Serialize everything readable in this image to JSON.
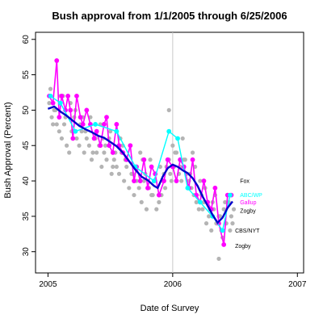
{
  "chart_data": {
    "type": "scatter",
    "title": "Bush approval from 1/1/2005 through 6/25/2006",
    "xlabel": "Date of Survey",
    "ylabel": "Bush Approval (Percent)",
    "xlim": [
      2004.9,
      2007.05
    ],
    "ylim": [
      27,
      61
    ],
    "x_ticks": [
      2005,
      2006,
      2007
    ],
    "x_tick_labels": [
      "2005",
      "2006",
      "2007"
    ],
    "y_ticks": [
      30,
      35,
      40,
      45,
      50,
      55,
      60
    ],
    "y_tick_labels": [
      "30",
      "35",
      "40",
      "45",
      "50",
      "55",
      "60"
    ],
    "reference_line_x": 2006,
    "grid": false,
    "colors": {
      "all_polls": "#b4b4b4",
      "trend": "#0000cc",
      "gallup": "#ff00ff",
      "abcwp": "#00ffff",
      "label_text": "#000000"
    },
    "series": [
      {
        "name": "",
        "style": "gray-points",
        "x": [
          2005.01,
          2005.03,
          2005.05,
          2005.07,
          2005.09,
          2005.11,
          2005.13,
          2005.15,
          2005.17,
          2005.19,
          2005.21,
          2005.23,
          2005.25,
          2005.27,
          2005.29,
          2005.31,
          2005.33,
          2005.35,
          2005.37,
          2005.39,
          2005.41,
          2005.43,
          2005.45,
          2005.47,
          2005.49,
          2005.51,
          2005.53,
          2005.55,
          2005.57,
          2005.59,
          2005.61,
          2005.63,
          2005.65,
          2005.67,
          2005.69,
          2005.71,
          2005.73,
          2005.75,
          2005.77,
          2005.79,
          2005.81,
          2005.83,
          2005.85,
          2005.87,
          2005.89,
          2005.91,
          2005.93,
          2005.95,
          2005.97,
          2005.99,
          2006.01,
          2006.03,
          2006.05,
          2006.07,
          2006.09,
          2006.11,
          2006.13,
          2006.15,
          2006.17,
          2006.19,
          2006.21,
          2006.23,
          2006.25,
          2006.27,
          2006.29,
          2006.31,
          2006.33,
          2006.35,
          2006.37,
          2006.39,
          2006.41,
          2006.43,
          2006.45,
          2006.47,
          2006.49,
          2005.02,
          2005.06,
          2005.1,
          2005.14,
          2005.18,
          2005.22,
          2005.26,
          2005.3,
          2005.34,
          2005.38,
          2005.42,
          2005.46,
          2005.5,
          2005.54,
          2005.58,
          2005.62,
          2005.66,
          2005.7,
          2005.74,
          2005.78,
          2005.82,
          2005.86,
          2005.9,
          2005.94,
          2005.98,
          2006.02,
          2006.06,
          2006.1,
          2006.14,
          2006.18,
          2006.22,
          2006.26,
          2006.3,
          2006.34,
          2006.38,
          2006.42,
          2006.46,
          2005.04,
          2005.12,
          2005.2,
          2005.28,
          2005.36,
          2005.44,
          2005.52,
          2005.6,
          2005.68,
          2005.76,
          2005.84,
          2005.92,
          2006.0,
          2006.08,
          2006.16,
          2006.24,
          2006.32,
          2006.4,
          2006.48,
          2005.97,
          2006.37,
          2006.41
        ],
        "y": [
          51,
          49,
          50,
          48,
          47,
          46,
          48,
          45,
          44,
          47,
          49,
          46,
          45,
          47,
          44,
          46,
          45,
          43,
          46,
          44,
          45,
          42,
          44,
          43,
          46,
          41,
          43,
          42,
          41,
          44,
          40,
          42,
          39,
          41,
          38,
          40,
          39,
          37,
          40,
          36,
          39,
          38,
          40,
          36,
          37,
          38,
          41,
          42,
          43,
          40,
          42,
          44,
          41,
          40,
          43,
          41,
          40,
          39,
          38,
          37,
          36,
          38,
          37,
          34,
          35,
          33,
          36,
          34,
          35,
          33,
          36,
          34,
          37,
          35,
          36,
          53,
          50,
          52,
          49,
          51,
          50,
          48,
          47,
          49,
          46,
          48,
          45,
          47,
          44,
          46,
          43,
          45,
          42,
          44,
          41,
          43,
          40,
          42,
          39,
          41,
          44,
          42,
          43,
          41,
          42,
          40,
          39,
          36,
          38,
          35,
          37,
          33,
          48,
          52,
          47,
          49,
          44,
          46,
          42,
          45,
          41,
          43,
          38,
          40,
          45,
          46,
          44,
          36,
          37,
          32,
          34,
          50,
          29,
          31
        ]
      },
      {
        "name": "",
        "style": "trend",
        "x": [
          2005.0,
          2005.05,
          2005.1,
          2005.15,
          2005.2,
          2005.25,
          2005.3,
          2005.35,
          2005.4,
          2005.45,
          2005.5,
          2005.55,
          2005.6,
          2005.65,
          2005.7,
          2005.75,
          2005.8,
          2005.85,
          2005.88,
          2005.92,
          2005.96,
          2006.0,
          2006.04,
          2006.08,
          2006.12,
          2006.16,
          2006.2,
          2006.24,
          2006.28,
          2006.32,
          2006.36,
          2006.4,
          2006.44,
          2006.48
        ],
        "y": [
          50.2,
          50.5,
          49.8,
          49.2,
          48.5,
          47.8,
          47.3,
          46.9,
          46.4,
          46.1,
          45.5,
          44.9,
          44.0,
          42.8,
          41.6,
          40.6,
          40.1,
          39.3,
          39.0,
          40.6,
          41.8,
          42.3,
          42.0,
          41.5,
          41.1,
          40.4,
          39.3,
          37.8,
          36.5,
          35.2,
          34.1,
          34.8,
          36.2,
          37.1
        ]
      },
      {
        "name": "",
        "style": "gallup",
        "x": [
          2005.01,
          2005.04,
          2005.07,
          2005.09,
          2005.11,
          2005.14,
          2005.16,
          2005.18,
          2005.2,
          2005.23,
          2005.26,
          2005.28,
          2005.31,
          2005.34,
          2005.37,
          2005.39,
          2005.42,
          2005.45,
          2005.47,
          2005.49,
          2005.52,
          2005.55,
          2005.57,
          2005.6,
          2005.63,
          2005.66,
          2005.69,
          2005.71,
          2005.74,
          2005.77,
          2005.8,
          2005.83,
          2005.86,
          2005.89,
          2005.93,
          2005.96,
          2006.0,
          2006.03,
          2006.06,
          2006.09,
          2006.13,
          2006.16,
          2006.19,
          2006.22,
          2006.25,
          2006.28,
          2006.31,
          2006.34,
          2006.37,
          2006.41,
          2006.44,
          2006.47
        ],
        "y": [
          52,
          51,
          57,
          49,
          52,
          50,
          52,
          50,
          46,
          52,
          49,
          48,
          50,
          48,
          46,
          47,
          45,
          48,
          49,
          45,
          44,
          48,
          45,
          44,
          43,
          45,
          40,
          42,
          40,
          43,
          39,
          42,
          41,
          38,
          40,
          43,
          42,
          40,
          43,
          42,
          39,
          43,
          38,
          37,
          40,
          37,
          36,
          39,
          34,
          31,
          38,
          38
        ]
      },
      {
        "name": "",
        "style": "abcwp",
        "x": [
          2005.02,
          2005.1,
          2005.22,
          2005.38,
          2005.55,
          2005.7,
          2005.85,
          2005.97,
          2006.04,
          2006.12,
          2006.22,
          2006.32,
          2006.4,
          2006.46
        ],
        "y": [
          52,
          51,
          47,
          48,
          47,
          42,
          40,
          47,
          46,
          39,
          37,
          35,
          33,
          38
        ]
      }
    ],
    "annotations": [
      {
        "text": "Fox",
        "color": "#000000",
        "x": 2006.54,
        "y": 40
      },
      {
        "text": "ABC/WP",
        "color": "#00ffff",
        "x": 2006.54,
        "y": 38
      },
      {
        "text": "Gallup",
        "color": "#ff00ff",
        "x": 2006.54,
        "y": 37
      },
      {
        "text": "Zogby",
        "color": "#000000",
        "x": 2006.54,
        "y": 35.8
      },
      {
        "text": "CBS/NYT",
        "color": "#000000",
        "x": 2006.5,
        "y": 33
      },
      {
        "text": "Zogby",
        "color": "#000000",
        "x": 2006.5,
        "y": 30.8
      }
    ]
  }
}
